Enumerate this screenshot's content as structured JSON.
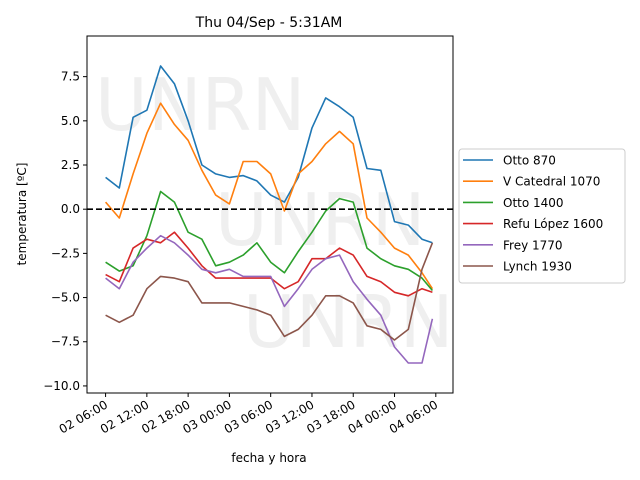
{
  "chart_data": {
    "type": "line",
    "title": "Thu 04/Sep - 5:31AM",
    "xlabel": "fecha y hora",
    "ylabel": "temperatura [ºC]",
    "watermark": "UNRN",
    "x_unit": "hours since 02 00:00",
    "xlim": [
      3.3,
      56.5
    ],
    "ylim": [
      -10.4,
      9.8
    ],
    "x_ticks": [
      {
        "value": 6,
        "label": "02 06:00"
      },
      {
        "value": 12,
        "label": "02 12:00"
      },
      {
        "value": 18,
        "label": "02 18:00"
      },
      {
        "value": 24,
        "label": "03 00:00"
      },
      {
        "value": 30,
        "label": "03 06:00"
      },
      {
        "value": 36,
        "label": "03 12:00"
      },
      {
        "value": 42,
        "label": "03 18:00"
      },
      {
        "value": 48,
        "label": "04 00:00"
      },
      {
        "value": 54,
        "label": "04 06:00"
      }
    ],
    "y_ticks": [
      {
        "value": 7.5,
        "label": "7.5"
      },
      {
        "value": 5.0,
        "label": "5.0"
      },
      {
        "value": 2.5,
        "label": "2.5"
      },
      {
        "value": 0.0,
        "label": "0.0"
      },
      {
        "value": -2.5,
        "label": "−2.5"
      },
      {
        "value": -5.0,
        "label": "−5.0"
      },
      {
        "value": -7.5,
        "label": "−7.5"
      },
      {
        "value": -10.0,
        "label": "−10.0"
      }
    ],
    "reference_line": {
      "y": 0,
      "style": "dashed",
      "color": "#000000"
    },
    "legend_position": "center-right outside",
    "x": [
      6,
      8,
      10,
      12,
      14,
      16,
      18,
      20,
      22,
      24,
      26,
      28,
      30,
      32,
      34,
      36,
      38,
      40,
      42,
      44,
      46,
      48,
      50,
      52,
      53.5
    ],
    "series": [
      {
        "name": "Otto 870",
        "color": "#1f77b4",
        "values": [
          1.8,
          1.2,
          5.2,
          5.6,
          8.1,
          7.1,
          5.0,
          2.5,
          2.0,
          1.8,
          1.9,
          1.6,
          0.8,
          0.4,
          1.8,
          4.6,
          6.3,
          5.8,
          5.2,
          2.3,
          2.2,
          -0.7,
          -0.9,
          -1.7,
          -1.9
        ]
      },
      {
        "name": "V Catedral 1070",
        "color": "#ff7f0e",
        "values": [
          0.4,
          -0.5,
          2.0,
          4.3,
          6.0,
          4.8,
          3.9,
          2.2,
          0.8,
          0.3,
          2.7,
          2.7,
          2.0,
          -0.1,
          2.0,
          2.7,
          3.7,
          4.4,
          3.7,
          -0.5,
          -1.3,
          -2.2,
          -2.6,
          -3.6,
          -4.5
        ]
      },
      {
        "name": "Otto 1400",
        "color": "#2ca02c",
        "values": [
          -3.0,
          -3.5,
          -3.2,
          -1.5,
          1.0,
          0.4,
          -1.3,
          -1.7,
          -3.2,
          -3.0,
          -2.6,
          -1.9,
          -3.0,
          -3.6,
          -2.4,
          -1.3,
          -0.1,
          0.6,
          0.4,
          -2.2,
          -2.8,
          -3.2,
          -3.4,
          -3.9,
          -4.6
        ]
      },
      {
        "name": "Refu López 1600",
        "color": "#d62728",
        "values": [
          -3.7,
          -4.1,
          -2.2,
          -1.7,
          -1.9,
          -1.3,
          -2.2,
          -3.2,
          -3.9,
          -3.9,
          -3.9,
          -3.9,
          -3.9,
          -4.5,
          -4.1,
          -2.8,
          -2.8,
          -2.2,
          -2.6,
          -3.8,
          -4.1,
          -4.7,
          -4.9,
          -4.5,
          -4.7
        ]
      },
      {
        "name": "Frey 1770",
        "color": "#9467bd",
        "values": [
          -3.9,
          -4.5,
          -3.0,
          -2.2,
          -1.5,
          -1.9,
          -2.6,
          -3.4,
          -3.6,
          -3.4,
          -3.8,
          -3.8,
          -3.8,
          -5.5,
          -4.5,
          -3.4,
          -2.8,
          -2.6,
          -4.1,
          -5.1,
          -6.0,
          -7.8,
          -8.7,
          -8.7,
          -6.2
        ]
      },
      {
        "name": "Lynch 1930",
        "color": "#8c564b",
        "values": [
          -6.0,
          -6.4,
          -6.0,
          -4.5,
          -3.8,
          -3.9,
          -4.1,
          -5.3,
          -5.3,
          -5.3,
          -5.5,
          -5.7,
          -6.0,
          -7.2,
          -6.8,
          -6.0,
          -4.9,
          -4.9,
          -5.3,
          -6.6,
          -6.8,
          -7.4,
          -6.8,
          -3.4,
          -1.9
        ]
      }
    ]
  }
}
